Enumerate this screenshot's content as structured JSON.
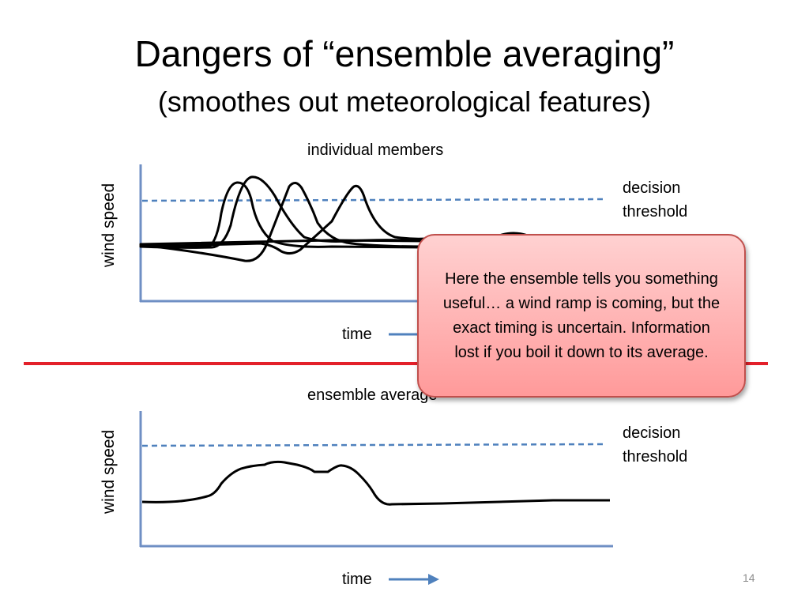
{
  "slide": {
    "title": "Dangers of “ensemble averaging”",
    "subtitle": "(smoothes out meteorological features)",
    "page_number": "14"
  },
  "top_panel": {
    "caption": "individual members",
    "y_axis_label": "wind speed",
    "x_axis_label": "time",
    "threshold_label_line1": "decision",
    "threshold_label_line2": "threshold"
  },
  "bottom_panel": {
    "caption": "ensemble average",
    "y_axis_label": "wind speed",
    "x_axis_label": "time",
    "threshold_label_line1": "decision",
    "threshold_label_line2": "threshold"
  },
  "callout": {
    "text": "Here the ensemble tells you something useful… a wind ramp is coming, but the exact timing is uncertain. Information lost if you boil it down to its average."
  },
  "colors": {
    "axis": "#6f8fc4",
    "threshold": "#4f81bd",
    "divider": "#e3202a",
    "curve": "#000000",
    "callout_border": "#c0504d",
    "callout_fill": "#ffb3b3"
  }
}
